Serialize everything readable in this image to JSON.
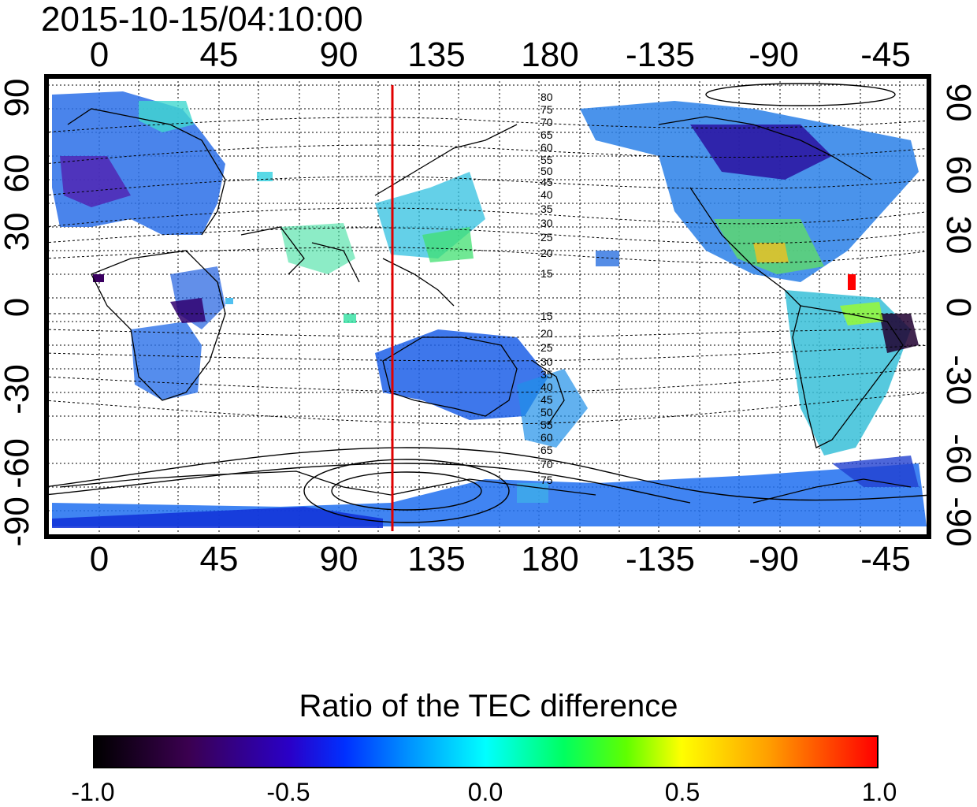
{
  "map": {
    "title": "2015-10-15/04:10:00",
    "lon_ticks": [
      "0",
      "45",
      "90",
      "135",
      "180",
      "-135",
      "-90",
      "-45"
    ],
    "lat_ticks": [
      "90",
      "60",
      "30",
      "0",
      "-30",
      "-60",
      "-90"
    ],
    "contour_labels_north": [
      "80",
      "75",
      "70",
      "65",
      "60",
      "55",
      "50",
      "45",
      "40",
      "35",
      "30",
      "25",
      "20",
      "15"
    ],
    "contour_labels_south": [
      "15",
      "20",
      "25",
      "30",
      "35",
      "40",
      "45",
      "50",
      "55",
      "60",
      "65",
      "70",
      "75"
    ],
    "meridian_line_lon": 120,
    "meridian_line_color": "#e00000"
  },
  "colorbar": {
    "title": "Ratio of the TEC difference",
    "ticks": [
      "-1.0",
      "-0.5",
      "0.0",
      "0.5",
      "1.0"
    ],
    "colors": [
      "#000000",
      "#2a00c8",
      "#00ffff",
      "#ffff00",
      "#ff0000"
    ]
  }
}
